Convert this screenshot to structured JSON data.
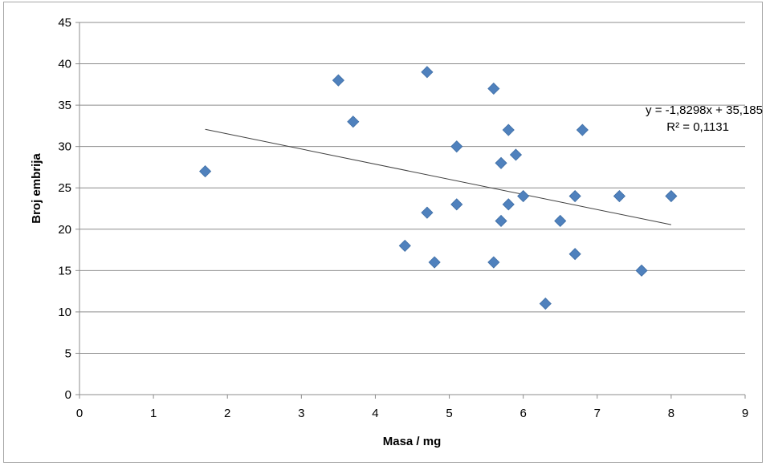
{
  "chart_data": {
    "type": "scatter",
    "title": "",
    "xlabel": "Masa / mg",
    "ylabel": "Broj embrija",
    "xlim": [
      0,
      9
    ],
    "ylim": [
      0,
      45
    ],
    "x_ticks": [
      0,
      1,
      2,
      3,
      4,
      5,
      6,
      7,
      8,
      9
    ],
    "y_ticks": [
      0,
      5,
      10,
      15,
      20,
      25,
      30,
      35,
      40,
      45
    ],
    "grid": "horizontal",
    "marker_color": "#4f81bd",
    "trendline_color": "#404040",
    "points": [
      {
        "x": 1.7,
        "y": 27
      },
      {
        "x": 3.5,
        "y": 38
      },
      {
        "x": 3.7,
        "y": 33
      },
      {
        "x": 4.4,
        "y": 18
      },
      {
        "x": 4.7,
        "y": 39
      },
      {
        "x": 4.7,
        "y": 22
      },
      {
        "x": 4.8,
        "y": 16
      },
      {
        "x": 5.1,
        "y": 30
      },
      {
        "x": 5.1,
        "y": 23
      },
      {
        "x": 5.6,
        "y": 37
      },
      {
        "x": 5.6,
        "y": 16
      },
      {
        "x": 5.7,
        "y": 28
      },
      {
        "x": 5.7,
        "y": 21
      },
      {
        "x": 5.8,
        "y": 32
      },
      {
        "x": 5.8,
        "y": 23
      },
      {
        "x": 5.9,
        "y": 29
      },
      {
        "x": 6.0,
        "y": 24
      },
      {
        "x": 6.3,
        "y": 11
      },
      {
        "x": 6.5,
        "y": 21
      },
      {
        "x": 6.7,
        "y": 24
      },
      {
        "x": 6.7,
        "y": 17
      },
      {
        "x": 6.8,
        "y": 32
      },
      {
        "x": 7.3,
        "y": 24
      },
      {
        "x": 7.6,
        "y": 15
      },
      {
        "x": 8.0,
        "y": 24
      }
    ],
    "trendline": {
      "slope": -1.8298,
      "intercept": 35.185,
      "x_range": [
        1.7,
        8.0
      ],
      "equation_label": "y = -1,8298x + 35,185",
      "r2_label": "R² = 0,1131"
    }
  }
}
